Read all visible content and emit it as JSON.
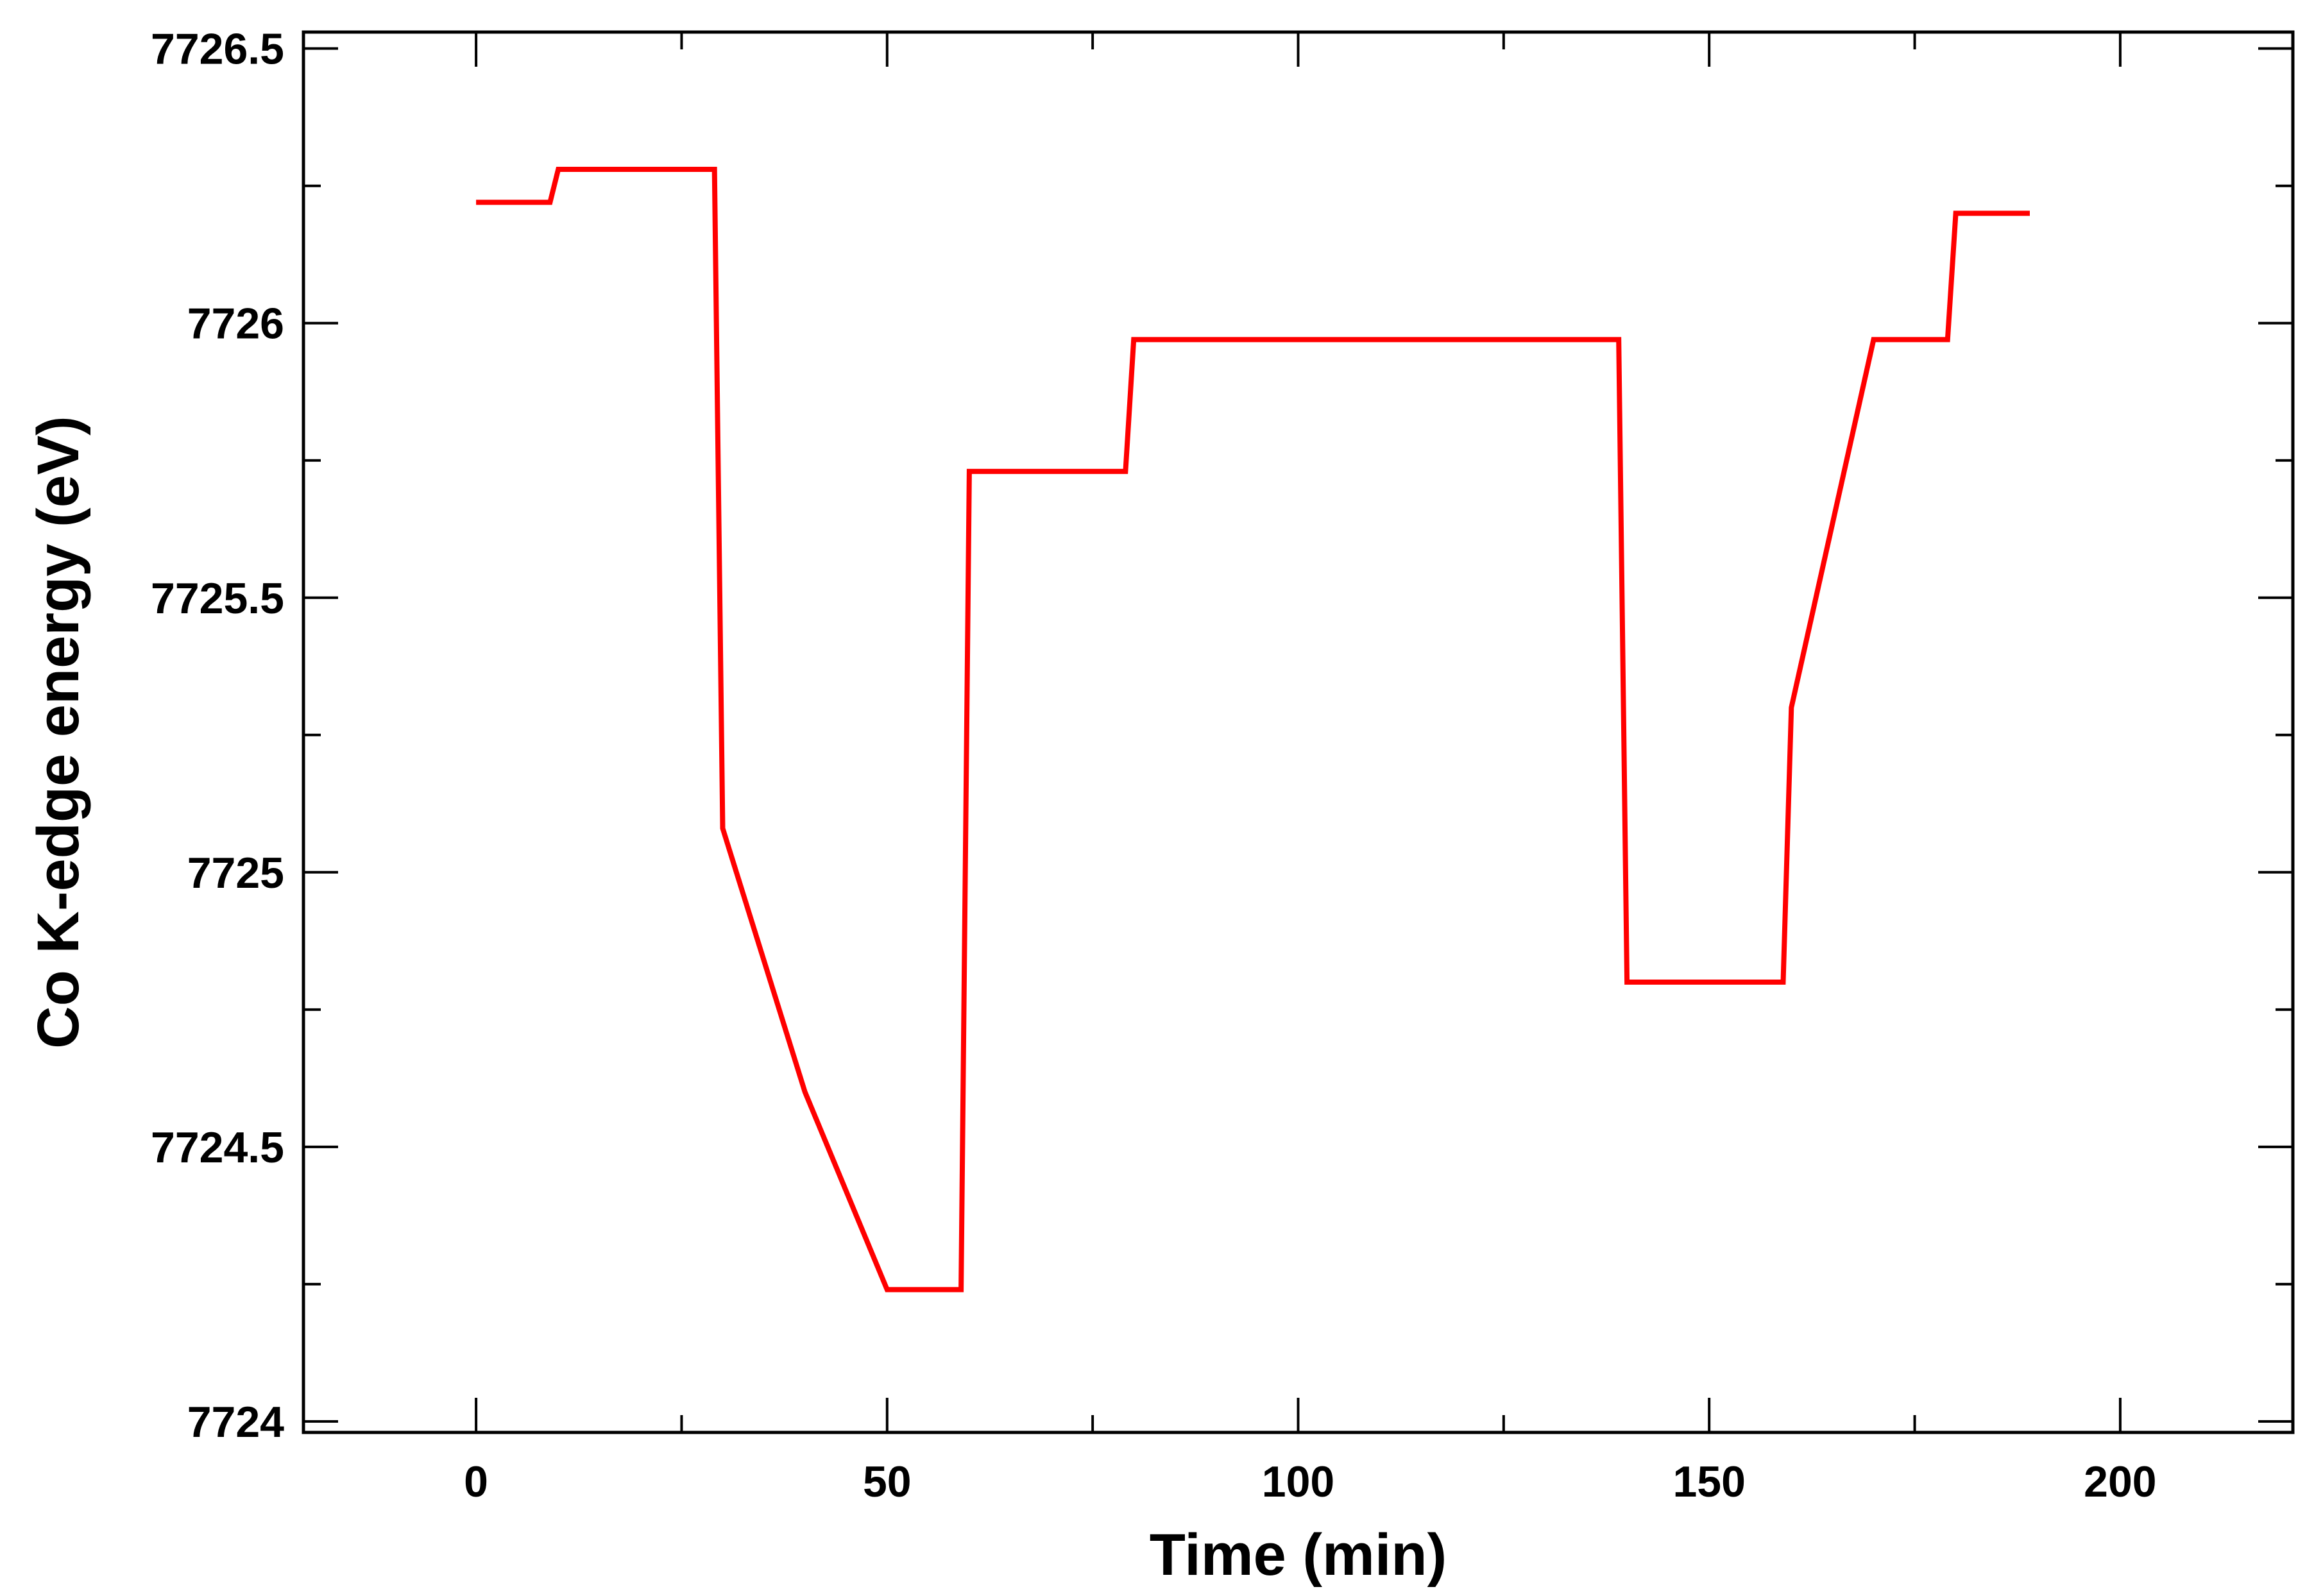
{
  "chart_data": {
    "type": "line",
    "title": "",
    "xlabel": "Time (min)",
    "ylabel": "Co K-edge energy (eV)",
    "xlim": [
      -21,
      221
    ],
    "ylim": [
      7723.98,
      7726.53
    ],
    "x_ticks": [
      0,
      50,
      100,
      150,
      200
    ],
    "y_ticks": [
      7724,
      7724.5,
      7725,
      7725.5,
      7726,
      7726.5
    ],
    "x_tick_labels": [
      "0",
      "50",
      "100",
      "150",
      "200"
    ],
    "y_tick_labels": [
      "7724",
      "7724.5",
      "7725",
      "7725.5",
      "7726",
      "7726.5"
    ],
    "x_minor_step": 25,
    "y_minor_step": 0.25,
    "grid": false,
    "legend": "none",
    "series": [
      {
        "color": "#ff0000",
        "x": [
          0,
          9,
          10,
          29,
          30,
          40,
          50,
          59,
          60,
          79,
          80,
          139,
          140,
          159,
          160,
          170,
          179,
          180,
          189
        ],
        "y": [
          7726.22,
          7726.22,
          7726.28,
          7726.28,
          7725.08,
          7724.6,
          7724.24,
          7724.24,
          7725.73,
          7725.73,
          7725.97,
          7725.97,
          7724.8,
          7724.8,
          7725.3,
          7725.97,
          7725.97,
          7726.2,
          7726.2
        ]
      }
    ]
  }
}
